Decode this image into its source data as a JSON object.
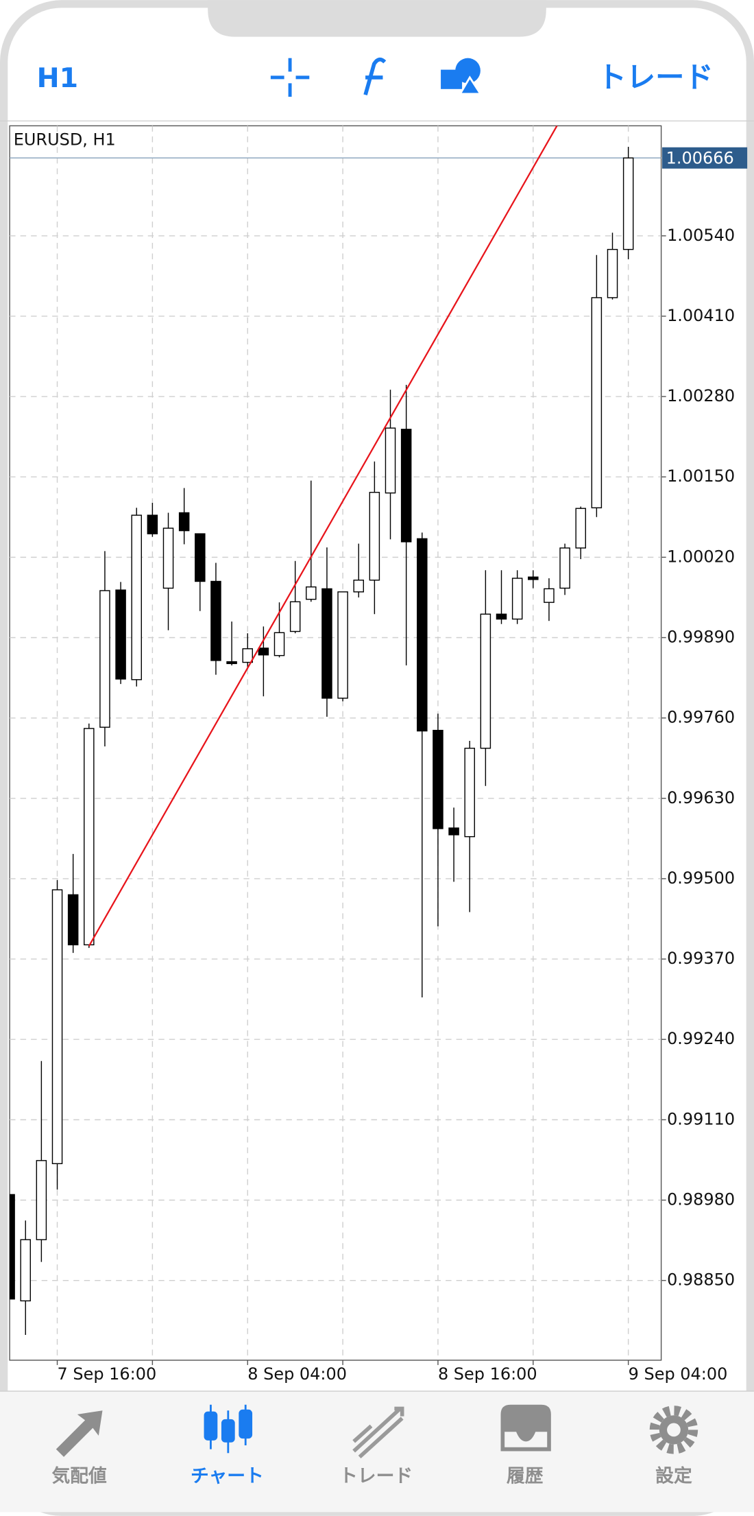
{
  "header": {
    "timeframe": "H1",
    "trade": "トレード"
  },
  "chart_data": {
    "type": "candlestick",
    "title": "EURUSD, H1",
    "categories": [
      null,
      null,
      null,
      "7 Sep 16:00",
      null,
      null,
      null,
      null,
      null,
      null,
      null,
      null,
      null,
      null,
      null,
      "8 Sep 04:00",
      null,
      null,
      null,
      null,
      null,
      null,
      null,
      null,
      null,
      null,
      null,
      "8 Sep 16:00",
      null,
      null,
      null,
      null,
      null,
      null,
      null,
      null,
      null,
      null,
      null,
      "9 Sep 04:00"
    ],
    "open": [
      0.98989,
      0.98817,
      0.98916,
      0.99039,
      0.99474,
      0.99393,
      0.99745,
      0.99967,
      0.99822,
      1.00088,
      0.9997,
      1.00092,
      1.00058,
      0.99981,
      0.99851,
      0.9985,
      0.99873,
      0.99861,
      0.999,
      0.99952,
      0.99969,
      0.99792,
      0.99964,
      0.99983,
      1.00124,
      1.00227,
      1.0005,
      0.9974,
      0.99582,
      0.99568,
      0.99711,
      0.99928,
      0.9992,
      0.99988,
      0.99947,
      0.9997,
      1.00035,
      1.001,
      1.0044,
      1.00518
    ],
    "high": [
      0.98989,
      0.98947,
      0.99205,
      0.99498,
      0.9954,
      0.99751,
      1.0003,
      0.9998,
      1.001,
      1.00108,
      1.00092,
      1.00132,
      1.00058,
      1.00011,
      0.99916,
      0.99897,
      0.99908,
      0.99947,
      1.00014,
      1.00144,
      1.00036,
      0.99964,
      1.00042,
      1.00175,
      1.00291,
      1.00299,
      1.0006,
      0.99767,
      0.99615,
      0.99723,
      0.99999,
      0.99999,
      0.99999,
      0.99999,
      0.99986,
      1.00042,
      1.00102,
      1.00509,
      1.00545,
      1.00684
    ],
    "low": [
      0.9882,
      0.98762,
      0.9888,
      0.98997,
      0.9938,
      0.99388,
      0.99714,
      0.99815,
      0.99811,
      1.00053,
      0.99902,
      1.00041,
      0.99933,
      0.9983,
      0.99845,
      0.99842,
      0.99795,
      0.99858,
      0.99897,
      0.99948,
      0.99762,
      0.99787,
      0.99955,
      0.99928,
      1.00049,
      0.99845,
      0.99308,
      0.99423,
      0.99495,
      0.99446,
      0.9965,
      0.99912,
      0.99912,
      0.9997,
      0.99917,
      0.99959,
      1.00017,
      1.00085,
      1.00437,
      1.00502
    ],
    "close": [
      0.9882,
      0.98916,
      0.99044,
      0.99482,
      0.99393,
      0.99743,
      0.99966,
      0.99823,
      1.00088,
      1.00058,
      1.00067,
      1.00063,
      0.99981,
      0.99853,
      0.99848,
      0.99872,
      0.99862,
      0.99898,
      0.99948,
      0.99972,
      0.99792,
      0.99964,
      0.99983,
      1.00125,
      1.00229,
      1.00045,
      0.99739,
      0.99581,
      0.99571,
      0.99711,
      0.99928,
      0.9992,
      0.99986,
      0.99984,
      0.99969,
      1.00035,
      1.00099,
      1.0044,
      1.00518,
      1.00666
    ],
    "up_color": "#ffffff",
    "down_color": "#000000",
    "ylim": [
      0.98721,
      1.00718
    ],
    "yticks": [
      {
        "value": 0.9885,
        "label": "0.98850"
      },
      {
        "value": 0.9898,
        "label": "0.98980"
      },
      {
        "value": 0.9911,
        "label": "0.99110"
      },
      {
        "value": 0.9924,
        "label": "0.99240"
      },
      {
        "value": 0.9937,
        "label": "0.99370"
      },
      {
        "value": 0.995,
        "label": "0.99500"
      },
      {
        "value": 0.9963,
        "label": "0.99630"
      },
      {
        "value": 0.9976,
        "label": "0.99760"
      },
      {
        "value": 0.9989,
        "label": "0.99890"
      },
      {
        "value": 1.0002,
        "label": "1.00020"
      },
      {
        "value": 1.0015,
        "label": "1.00150"
      },
      {
        "value": 1.0028,
        "label": "1.00280"
      },
      {
        "value": 1.0041,
        "label": "1.00410"
      },
      {
        "value": 1.0054,
        "label": "1.00540"
      }
    ],
    "grid": true,
    "last_price": 1.00666,
    "trendline": {
      "x": [
        5,
        34.5
      ],
      "values": [
        0.99391,
        1.00718
      ],
      "color": "#e8141b"
    }
  },
  "tabs": [
    "気配値",
    "チャート",
    "トレード",
    "履歴",
    "設定"
  ]
}
